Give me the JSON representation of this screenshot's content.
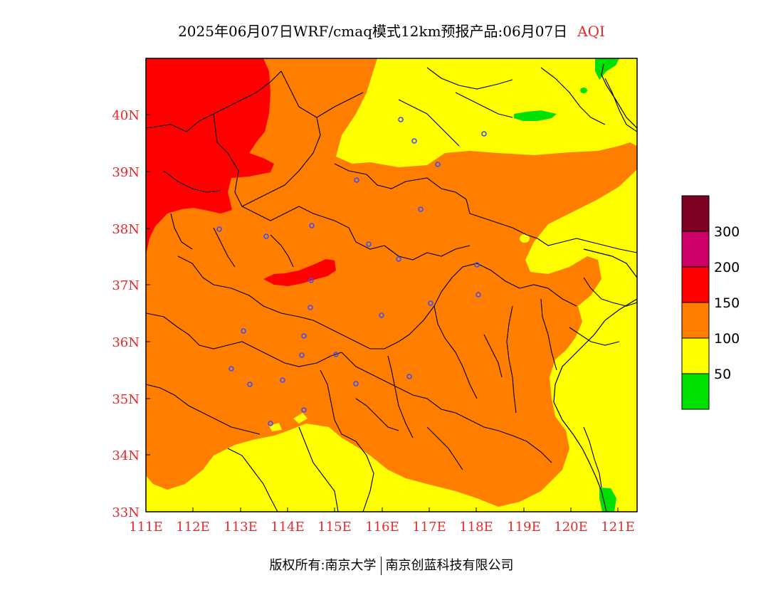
{
  "title": {
    "main": "2025年06月07日WRF/cmaq模式12km预报产品:06月07日",
    "product": "AQI"
  },
  "map": {
    "lon_ticks": [
      "111E",
      "112E",
      "113E",
      "114E",
      "115E",
      "116E",
      "117E",
      "118E",
      "119E",
      "120E",
      "121E"
    ],
    "lat_ticks": [
      "33N",
      "34N",
      "35N",
      "36N",
      "37N",
      "38N",
      "39N",
      "40N"
    ],
    "extent": {
      "lon": [
        111,
        121.4
      ],
      "lat": [
        33,
        41
      ]
    },
    "colors": {
      "good": "#00e000",
      "moderate": "#ffff00",
      "usg": "#ff7e00",
      "unhealthy": "#ff0000",
      "very_unhealthy": "#cc0066",
      "hazardous": "#7e0023",
      "boundary": "#000000",
      "station": "#3a4fff"
    }
  },
  "legend": {
    "labels": [
      "300",
      "200",
      "150",
      "100",
      "50"
    ],
    "bins": [
      {
        "color": "#7e0023",
        "range": "300+"
      },
      {
        "color": "#cc0066",
        "range": "200-300"
      },
      {
        "color": "#ff0000",
        "range": "150-200"
      },
      {
        "color": "#ff7e00",
        "range": "100-150"
      },
      {
        "color": "#ffff00",
        "range": "50-100"
      },
      {
        "color": "#00e000",
        "range": "0-50"
      }
    ]
  },
  "footer": {
    "copyright": "版权所有:南京大学",
    "company": "南京创蓝科技有限公司"
  }
}
